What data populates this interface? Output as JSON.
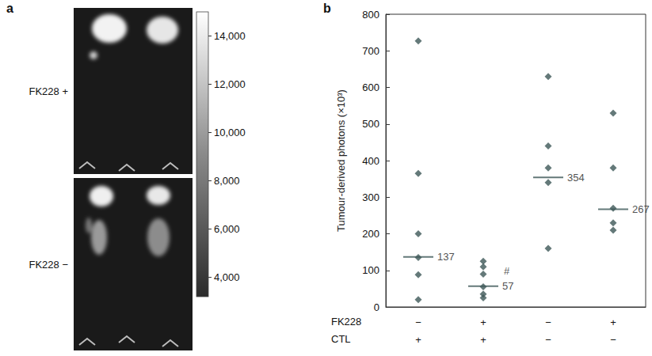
{
  "panel_a": {
    "letter": "a",
    "rows": [
      "FK228 +",
      "FK228 −"
    ],
    "colorbar": {
      "range": [
        3200,
        15000
      ],
      "ticks": [
        {
          "value": 4000,
          "label": "4,000"
        },
        {
          "value": 6000,
          "label": "6,000"
        },
        {
          "value": 8000,
          "label": "8,000"
        },
        {
          "value": 10000,
          "label": "10,000"
        },
        {
          "value": 12000,
          "label": "12,000"
        },
        {
          "value": 14000,
          "label": "14,000"
        }
      ]
    }
  },
  "chart_data": {
    "letter": "b",
    "type": "scatter",
    "ylabel": "Tumour-derived photons (×10³)",
    "ylim": [
      0,
      800
    ],
    "yticks": [
      0,
      100,
      200,
      300,
      400,
      500,
      600,
      700,
      800
    ],
    "category_rows": [
      {
        "name": "FK228",
        "labels": [
          "−",
          "+",
          "−",
          "+"
        ]
      },
      {
        "name": "CTL",
        "labels": [
          "+",
          "+",
          "−",
          "−"
        ]
      }
    ],
    "groups": [
      {
        "values": [
          727,
          365,
          200,
          135,
          88,
          20
        ],
        "line_value": 137
      },
      {
        "values": [
          125,
          110,
          90,
          55,
          35,
          25
        ],
        "line_value": 57
      },
      {
        "values": [
          630,
          440,
          380,
          340,
          160
        ],
        "line_value": 354
      },
      {
        "values": [
          530,
          380,
          270,
          230,
          210
        ],
        "line_value": 267
      }
    ],
    "data_labels": true,
    "annotations": [
      {
        "group": 1,
        "text": "#"
      }
    ],
    "color": "#3d5858",
    "marker": "diamond",
    "grid": false
  }
}
